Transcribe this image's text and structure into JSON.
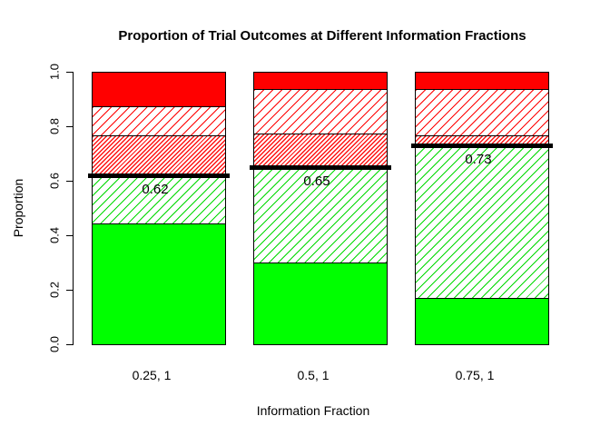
{
  "title": "Proportion of Trial Outcomes at Different Information Fractions",
  "y_axis": {
    "label": "Proportion",
    "ticks": [
      "0.0",
      "0.2",
      "0.4",
      "0.6",
      "0.8",
      "1.0"
    ],
    "tick_values": [
      0.0,
      0.2,
      0.4,
      0.6,
      0.8,
      1.0
    ]
  },
  "x_axis": {
    "label": "Information Fraction",
    "categories": [
      "0.25, 1",
      "0.5, 1",
      "0.75, 1"
    ]
  },
  "colors": {
    "solid_green": "#00ff00",
    "solid_red": "#ff0000",
    "hatch_green_line": "#00d900",
    "hatch_red_line": "#ff0000",
    "threshold_line": "#000000",
    "axis": "#000000",
    "background": "#ffffff"
  },
  "chart_data": {
    "type": "bar",
    "stacked": true,
    "title": "Proportion of Trial Outcomes at Different Information Fractions",
    "xlabel": "Information Fraction",
    "ylabel": "Proportion",
    "ylim": [
      0.0,
      1.0
    ],
    "grid": false,
    "legend": "none",
    "categories": [
      "0.25, 1",
      "0.5, 1",
      "0.75, 1"
    ],
    "series": [
      {
        "name": "solid-green-bottom-segment",
        "pattern": "solid",
        "color": "#00ff00",
        "values": [
          0.445,
          0.3,
          0.17
        ]
      },
      {
        "name": "hatched-green-segment",
        "pattern": "hatch-light",
        "color": "#00ff00",
        "values": [
          0.175,
          0.35,
          0.56
        ]
      },
      {
        "name": "dense-hatched-red-segment",
        "pattern": "hatch-dense",
        "color": "#ff0000",
        "values": [
          0.15,
          0.125,
          0.04
        ]
      },
      {
        "name": "hatched-red-segment",
        "pattern": "hatch-light",
        "color": "#ff0000",
        "values": [
          0.105,
          0.165,
          0.17
        ]
      },
      {
        "name": "solid-red-top-segment",
        "pattern": "solid",
        "color": "#ff0000",
        "values": [
          0.125,
          0.06,
          0.06
        ]
      }
    ],
    "threshold_lines": {
      "values": [
        0.62,
        0.65,
        0.73
      ],
      "labels": [
        "0.62",
        "0.65",
        "0.73"
      ],
      "style": "thick-black-horizontal"
    }
  }
}
